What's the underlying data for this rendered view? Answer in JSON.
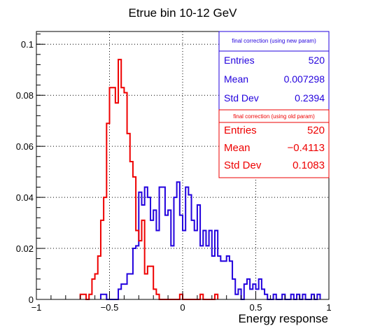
{
  "chart_data": {
    "type": "histogram",
    "title": "Etrue bin 10-12 GeV",
    "xlabel": "Energy response",
    "ylabel": "",
    "xlim": [
      -1,
      1
    ],
    "ylim": [
      0,
      0.105
    ],
    "grid": true,
    "x_ticks": [
      "−1",
      "−0.5",
      "0",
      "0.5",
      "1"
    ],
    "y_ticks": [
      "0",
      "0.02",
      "0.04",
      "0.06",
      "0.08",
      "0.1"
    ],
    "x_tick_values": [
      -1,
      -0.5,
      0,
      0.5,
      1
    ],
    "y_tick_values": [
      0,
      0.02,
      0.04,
      0.06,
      0.08,
      0.1
    ],
    "bin_width": 0.02,
    "series": [
      {
        "name": "final correction (using new param)",
        "color": "#2200dd",
        "bins": [
          {
            "x": -0.56,
            "y": 0.002
          },
          {
            "x": -0.54,
            "y": 0.002
          },
          {
            "x": -0.52,
            "y": 0.0
          },
          {
            "x": -0.5,
            "y": 0.0
          },
          {
            "x": -0.48,
            "y": 0.0
          },
          {
            "x": -0.46,
            "y": 0.0
          },
          {
            "x": -0.44,
            "y": 0.004
          },
          {
            "x": -0.42,
            "y": 0.006
          },
          {
            "x": -0.4,
            "y": 0.006
          },
          {
            "x": -0.38,
            "y": 0.01
          },
          {
            "x": -0.36,
            "y": 0.01
          },
          {
            "x": -0.34,
            "y": 0.02
          },
          {
            "x": -0.32,
            "y": 0.021
          },
          {
            "x": -0.3,
            "y": 0.042
          },
          {
            "x": -0.28,
            "y": 0.037
          },
          {
            "x": -0.26,
            "y": 0.044
          },
          {
            "x": -0.24,
            "y": 0.04
          },
          {
            "x": -0.22,
            "y": 0.031
          },
          {
            "x": -0.2,
            "y": 0.035
          },
          {
            "x": -0.18,
            "y": 0.027
          },
          {
            "x": -0.16,
            "y": 0.044
          },
          {
            "x": -0.14,
            "y": 0.044
          },
          {
            "x": -0.12,
            "y": 0.033
          },
          {
            "x": -0.1,
            "y": 0.035
          },
          {
            "x": -0.08,
            "y": 0.021
          },
          {
            "x": -0.06,
            "y": 0.04
          },
          {
            "x": -0.04,
            "y": 0.046
          },
          {
            "x": -0.02,
            "y": 0.033
          },
          {
            "x": 0.0,
            "y": 0.027
          },
          {
            "x": 0.02,
            "y": 0.044
          },
          {
            "x": 0.04,
            "y": 0.041
          },
          {
            "x": 0.06,
            "y": 0.031
          },
          {
            "x": 0.08,
            "y": 0.027
          },
          {
            "x": 0.1,
            "y": 0.037
          },
          {
            "x": 0.12,
            "y": 0.021
          },
          {
            "x": 0.14,
            "y": 0.027
          },
          {
            "x": 0.16,
            "y": 0.021
          },
          {
            "x": 0.18,
            "y": 0.027
          },
          {
            "x": 0.2,
            "y": 0.017
          },
          {
            "x": 0.22,
            "y": 0.027
          },
          {
            "x": 0.24,
            "y": 0.017
          },
          {
            "x": 0.26,
            "y": 0.015
          },
          {
            "x": 0.28,
            "y": 0.015
          },
          {
            "x": 0.3,
            "y": 0.017
          },
          {
            "x": 0.32,
            "y": 0.015
          },
          {
            "x": 0.34,
            "y": 0.008
          },
          {
            "x": 0.36,
            "y": 0.002
          },
          {
            "x": 0.38,
            "y": 0.004
          },
          {
            "x": 0.4,
            "y": 0.0
          },
          {
            "x": 0.42,
            "y": 0.006
          },
          {
            "x": 0.44,
            "y": 0.008
          },
          {
            "x": 0.46,
            "y": 0.004
          },
          {
            "x": 0.48,
            "y": 0.006
          },
          {
            "x": 0.5,
            "y": 0.004
          },
          {
            "x": 0.52,
            "y": 0.008
          },
          {
            "x": 0.54,
            "y": 0.004
          },
          {
            "x": 0.56,
            "y": 0.002
          },
          {
            "x": 0.58,
            "y": 0.0
          },
          {
            "x": 0.6,
            "y": 0.0
          },
          {
            "x": 0.62,
            "y": 0.002
          },
          {
            "x": 0.64,
            "y": 0.0
          },
          {
            "x": 0.66,
            "y": 0.0
          },
          {
            "x": 0.68,
            "y": 0.002
          },
          {
            "x": 0.7,
            "y": 0.0
          },
          {
            "x": 0.72,
            "y": 0.0
          },
          {
            "x": 0.74,
            "y": 0.002
          },
          {
            "x": 0.76,
            "y": 0.0
          },
          {
            "x": 0.78,
            "y": 0.002
          },
          {
            "x": 0.8,
            "y": 0.0
          },
          {
            "x": 0.82,
            "y": 0.002
          },
          {
            "x": 0.84,
            "y": 0.0
          },
          {
            "x": 0.86,
            "y": 0.0
          },
          {
            "x": 0.88,
            "y": 0.002
          },
          {
            "x": 0.9,
            "y": 0.0
          },
          {
            "x": 0.92,
            "y": 0.002
          }
        ]
      },
      {
        "name": "final correction (using old param)",
        "color": "#ee0000",
        "bins": [
          {
            "x": -0.7,
            "y": 0.002
          },
          {
            "x": -0.68,
            "y": 0.002
          },
          {
            "x": -0.66,
            "y": 0.0
          },
          {
            "x": -0.64,
            "y": 0.002
          },
          {
            "x": -0.62,
            "y": 0.008
          },
          {
            "x": -0.6,
            "y": 0.01
          },
          {
            "x": -0.58,
            "y": 0.017
          },
          {
            "x": -0.56,
            "y": 0.031
          },
          {
            "x": -0.54,
            "y": 0.04
          },
          {
            "x": -0.52,
            "y": 0.069
          },
          {
            "x": -0.5,
            "y": 0.083
          },
          {
            "x": -0.48,
            "y": 0.083
          },
          {
            "x": -0.46,
            "y": 0.077
          },
          {
            "x": -0.44,
            "y": 0.094
          },
          {
            "x": -0.42,
            "y": 0.083
          },
          {
            "x": -0.4,
            "y": 0.081
          },
          {
            "x": -0.38,
            "y": 0.065
          },
          {
            "x": -0.36,
            "y": 0.054
          },
          {
            "x": -0.34,
            "y": 0.048
          },
          {
            "x": -0.32,
            "y": 0.027
          },
          {
            "x": -0.3,
            "y": 0.023
          },
          {
            "x": -0.28,
            "y": 0.031
          },
          {
            "x": -0.26,
            "y": 0.01
          },
          {
            "x": -0.24,
            "y": 0.013
          },
          {
            "x": -0.22,
            "y": 0.013
          },
          {
            "x": -0.2,
            "y": 0.004
          },
          {
            "x": -0.18,
            "y": 0.002
          },
          {
            "x": -0.16,
            "y": 0.0
          },
          {
            "x": -0.14,
            "y": 0.0
          },
          {
            "x": -0.12,
            "y": 0.0
          },
          {
            "x": -0.1,
            "y": 0.0
          },
          {
            "x": -0.08,
            "y": 0.0
          },
          {
            "x": -0.06,
            "y": 0.0
          },
          {
            "x": -0.04,
            "y": 0.0
          },
          {
            "x": -0.02,
            "y": 0.002
          },
          {
            "x": 0.0,
            "y": 0.0
          },
          {
            "x": 0.02,
            "y": 0.0
          },
          {
            "x": 0.04,
            "y": 0.0
          },
          {
            "x": 0.06,
            "y": 0.0
          },
          {
            "x": 0.08,
            "y": 0.0
          },
          {
            "x": 0.1,
            "y": 0.0
          },
          {
            "x": 0.12,
            "y": 0.002
          },
          {
            "x": 0.14,
            "y": 0.0
          },
          {
            "x": 0.16,
            "y": 0.0
          },
          {
            "x": 0.18,
            "y": 0.0
          },
          {
            "x": 0.2,
            "y": 0.0
          },
          {
            "x": 0.22,
            "y": 0.002
          }
        ]
      }
    ],
    "stats_boxes": [
      {
        "header": "final correction (using new param)",
        "color": "#2200dd",
        "rows": [
          {
            "label": "Entries",
            "value": "520"
          },
          {
            "label": "Mean",
            "value": "0.007298"
          },
          {
            "label": "Std Dev",
            "value": "0.2394"
          }
        ]
      },
      {
        "header": "final correction (using old param)",
        "color": "#ee0000",
        "rows": [
          {
            "label": "Entries",
            "value": "520"
          },
          {
            "label": "Mean",
            "value": "−0.4113"
          },
          {
            "label": "Std Dev",
            "value": "0.1083"
          }
        ]
      }
    ]
  }
}
